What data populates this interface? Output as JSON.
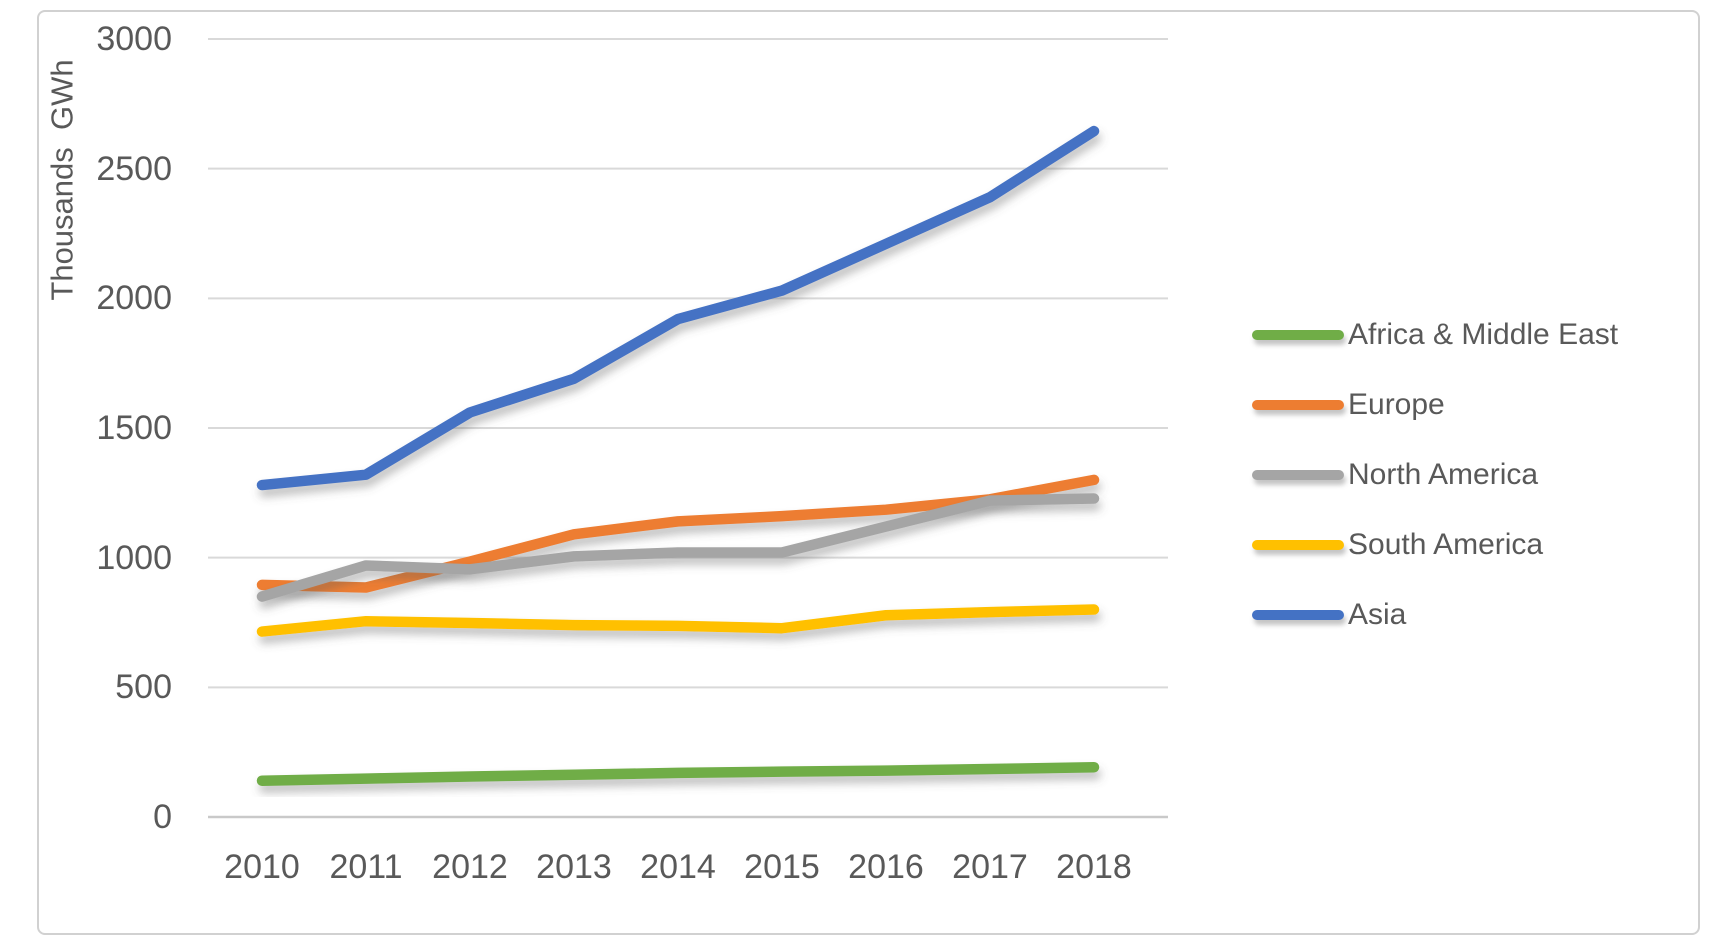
{
  "chart_data": {
    "type": "line",
    "title": "",
    "ylabel": "Thousands  GWh",
    "xlabel": "",
    "x_labels": [
      "2010",
      "2011",
      "2012",
      "2013",
      "2014",
      "2015",
      "2016",
      "2017",
      "2018"
    ],
    "y_ticks": [
      0,
      500,
      1000,
      1500,
      2000,
      2500,
      3000
    ],
    "ylim": [
      0,
      3000
    ],
    "grid": true,
    "legend_position": "right",
    "series": [
      {
        "name": "Africa & Middle East",
        "color": "#70AD47",
        "values": [
          140,
          148,
          156,
          163,
          170,
          175,
          179,
          185,
          192
        ]
      },
      {
        "name": "Europe",
        "color": "#ED7D31",
        "values": [
          895,
          885,
          985,
          1090,
          1140,
          1160,
          1185,
          1225,
          1300
        ]
      },
      {
        "name": "North America",
        "color": "#A5A5A5",
        "values": [
          850,
          970,
          955,
          1005,
          1020,
          1020,
          1120,
          1220,
          1228
        ]
      },
      {
        "name": "South America",
        "color": "#FFC000",
        "values": [
          715,
          755,
          748,
          740,
          737,
          728,
          778,
          790,
          800
        ]
      },
      {
        "name": "Asia",
        "color": "#4472C4",
        "values": [
          1280,
          1320,
          1560,
          1690,
          1920,
          2030,
          2210,
          2390,
          2645
        ]
      }
    ]
  },
  "colors": {
    "text": "#595959",
    "gridline": "#D9D9D9",
    "axis_line": "#C9C9C9",
    "frame_border": "#D1D1D1",
    "background": "#FFFFFF"
  }
}
